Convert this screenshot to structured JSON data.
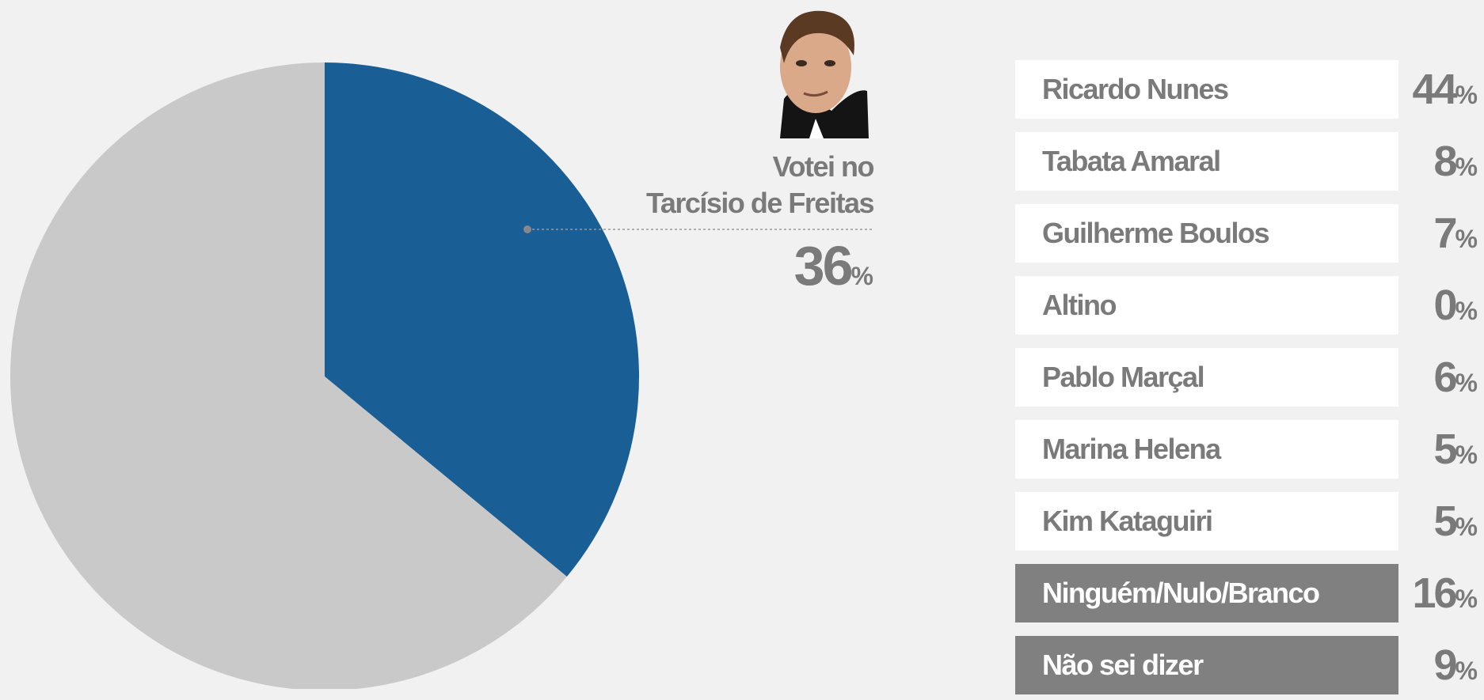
{
  "chart_data": [
    {
      "type": "pie",
      "categories": [
        "Votei no\nTarcísio de Freitas",
        null
      ],
      "values": [
        36,
        64
      ],
      "colors": [
        "#1a5e96",
        "#c9c9c9"
      ],
      "unit": "%"
    },
    {
      "type": "list",
      "categories": [
        "Ricardo Nunes",
        "Tabata Amaral",
        "Guilherme Boulos",
        "Altino",
        "Pablo Marçal",
        "Marina Helena",
        "Kim Kataguiri",
        "Ninguém/Nulo/Branco",
        "Não sei dizer"
      ],
      "values": [
        44,
        8,
        7,
        0,
        6,
        5,
        5,
        16,
        9
      ],
      "row_colors": [
        "#ffffff",
        "#ffffff",
        "#ffffff",
        "#ffffff",
        "#ffffff",
        "#ffffff",
        "#ffffff",
        "#808080",
        "#808080"
      ],
      "unit": "%"
    }
  ]
}
